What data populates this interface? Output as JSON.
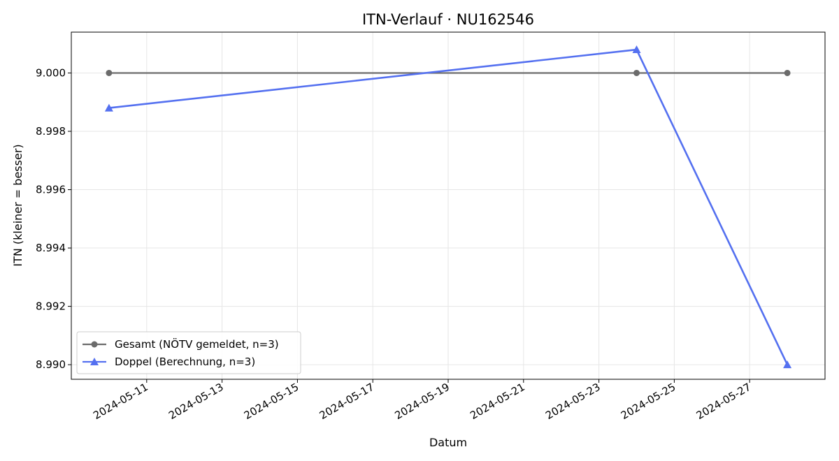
{
  "chart_data": {
    "type": "line",
    "title": "ITN-Verlauf · NU162546",
    "xlabel": "Datum",
    "ylabel": "ITN  (kleiner = besser)",
    "x_type": "date",
    "xlim": [
      "2024-05-09",
      "2024-05-29"
    ],
    "x_ticks": [
      "2024-05-11",
      "2024-05-13",
      "2024-05-15",
      "2024-05-17",
      "2024-05-19",
      "2024-05-21",
      "2024-05-23",
      "2024-05-25",
      "2024-05-27"
    ],
    "ylim": [
      8.9895,
      9.0014
    ],
    "y_ticks": [
      8.99,
      8.992,
      8.994,
      8.996,
      8.998,
      9.0
    ],
    "y_tick_labels": [
      "8.990",
      "8.992",
      "8.994",
      "8.996",
      "8.998",
      "9.000"
    ],
    "grid": true,
    "legend_position": "lower-left",
    "series": [
      {
        "name": "Gesamt (NÖTV gemeldet, n=3)",
        "color": "#6b6b6b",
        "marker": "circle",
        "x": [
          "2024-05-10",
          "2024-05-24",
          "2024-05-28"
        ],
        "y": [
          9.0,
          9.0,
          9.0
        ]
      },
      {
        "name": "Doppel (Berechnung, n=3)",
        "color": "#5470f0",
        "marker": "triangle",
        "x": [
          "2024-05-10",
          "2024-05-24",
          "2024-05-28"
        ],
        "y": [
          8.9988,
          9.0008,
          8.99
        ]
      }
    ]
  }
}
